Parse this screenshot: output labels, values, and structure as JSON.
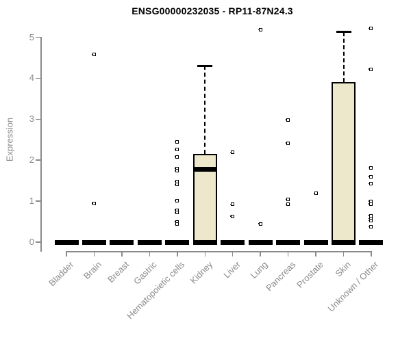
{
  "chart_data": {
    "type": "boxplot",
    "title": "ENSG00000232035 - RP11-87N24.3",
    "ylabel": "Expression",
    "ylim": [
      0,
      5
    ],
    "yticks": [
      0,
      1,
      2,
      3,
      4,
      5
    ],
    "grid": false,
    "legend": null,
    "colors": {
      "box_fill": "#EDE7CB",
      "box_border": "#000000",
      "axis": "#8A8A8A",
      "labels": "#8A8A8A",
      "title": "#000000"
    },
    "categories": [
      "Bladder",
      "Brain",
      "Breast",
      "Gastric",
      "Hematopoietic cells",
      "Kidney",
      "Liver",
      "Lung",
      "Pancreas",
      "Prostate",
      "Skin",
      "Unknown / Other"
    ],
    "series": [
      {
        "category": "Bladder",
        "q1": 0,
        "median": 0,
        "q3": 0,
        "whisker_low": 0,
        "whisker_high": 0,
        "outliers": []
      },
      {
        "category": "Brain",
        "q1": 0,
        "median": 0,
        "q3": 0,
        "whisker_low": 0,
        "whisker_high": 0,
        "outliers": [
          4.58,
          0.95
        ]
      },
      {
        "category": "Breast",
        "q1": 0,
        "median": 0,
        "q3": 0,
        "whisker_low": 0,
        "whisker_high": 0,
        "outliers": []
      },
      {
        "category": "Gastric",
        "q1": 0,
        "median": 0,
        "q3": 0,
        "whisker_low": 0,
        "whisker_high": 0,
        "outliers": []
      },
      {
        "category": "Hematopoietic cells",
        "q1": 0,
        "median": 0,
        "q3": 0,
        "whisker_low": 0,
        "whisker_high": 0,
        "outliers": [
          2.44,
          2.26,
          2.08,
          1.8,
          1.74,
          1.47,
          1.41,
          1.01,
          0.78,
          0.72,
          0.5,
          0.44
        ]
      },
      {
        "category": "Kidney",
        "q1": 0,
        "median": 1.78,
        "q3": 2.15,
        "whisker_low": 0,
        "whisker_high": 4.3,
        "outliers": []
      },
      {
        "category": "Liver",
        "q1": 0,
        "median": 0,
        "q3": 0,
        "whisker_low": 0,
        "whisker_high": 0,
        "outliers": [
          2.19,
          0.92,
          0.63
        ]
      },
      {
        "category": "Lung",
        "q1": 0,
        "median": 0,
        "q3": 0,
        "whisker_low": 0,
        "whisker_high": 0,
        "outliers": [
          5.18,
          0.45
        ]
      },
      {
        "category": "Pancreas",
        "q1": 0,
        "median": 0,
        "q3": 0,
        "whisker_low": 0,
        "whisker_high": 0,
        "outliers": [
          2.98,
          2.42,
          1.04,
          0.92
        ]
      },
      {
        "category": "Prostate",
        "q1": 0,
        "median": 0,
        "q3": 0,
        "whisker_low": 0,
        "whisker_high": 0,
        "outliers": [
          1.19
        ]
      },
      {
        "category": "Skin",
        "q1": 0,
        "median": 0,
        "q3": 3.91,
        "whisker_low": 0,
        "whisker_high": 5.13,
        "outliers": []
      },
      {
        "category": "Unknown / Other",
        "q1": 0,
        "median": 0,
        "q3": 0,
        "whisker_low": 0,
        "whisker_high": 0,
        "outliers": [
          5.21,
          4.22,
          1.81,
          1.6,
          1.42,
          1.0,
          0.93,
          0.65,
          0.57,
          0.52,
          0.37
        ]
      }
    ]
  }
}
